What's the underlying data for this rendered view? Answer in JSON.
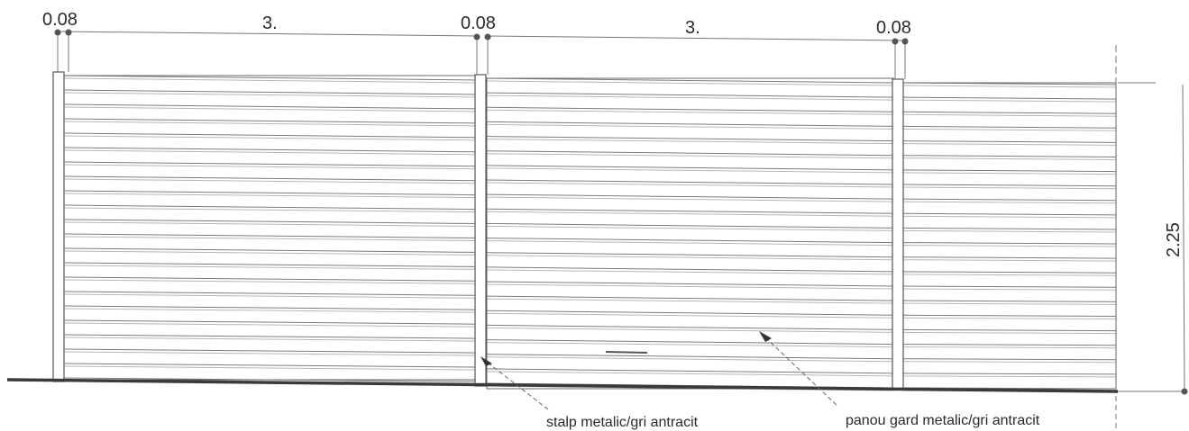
{
  "dimensions": {
    "post_width_1": "0.08",
    "panel_length_1": "3.",
    "post_width_2": "0.08",
    "panel_length_2": "3.",
    "post_width_3": "0.08",
    "fence_height": "2.25"
  },
  "annotations": {
    "post_note": "stalp metalic/gri antracit",
    "panel_note": "panou gard metalic/gri antracit"
  },
  "colors": {
    "line": "#5a5a5a",
    "slat": "#8a8a8a",
    "ground": "#3a3a3a",
    "text": "#2a2a2a",
    "dot": "#555555"
  },
  "panel_slat_count": 21
}
